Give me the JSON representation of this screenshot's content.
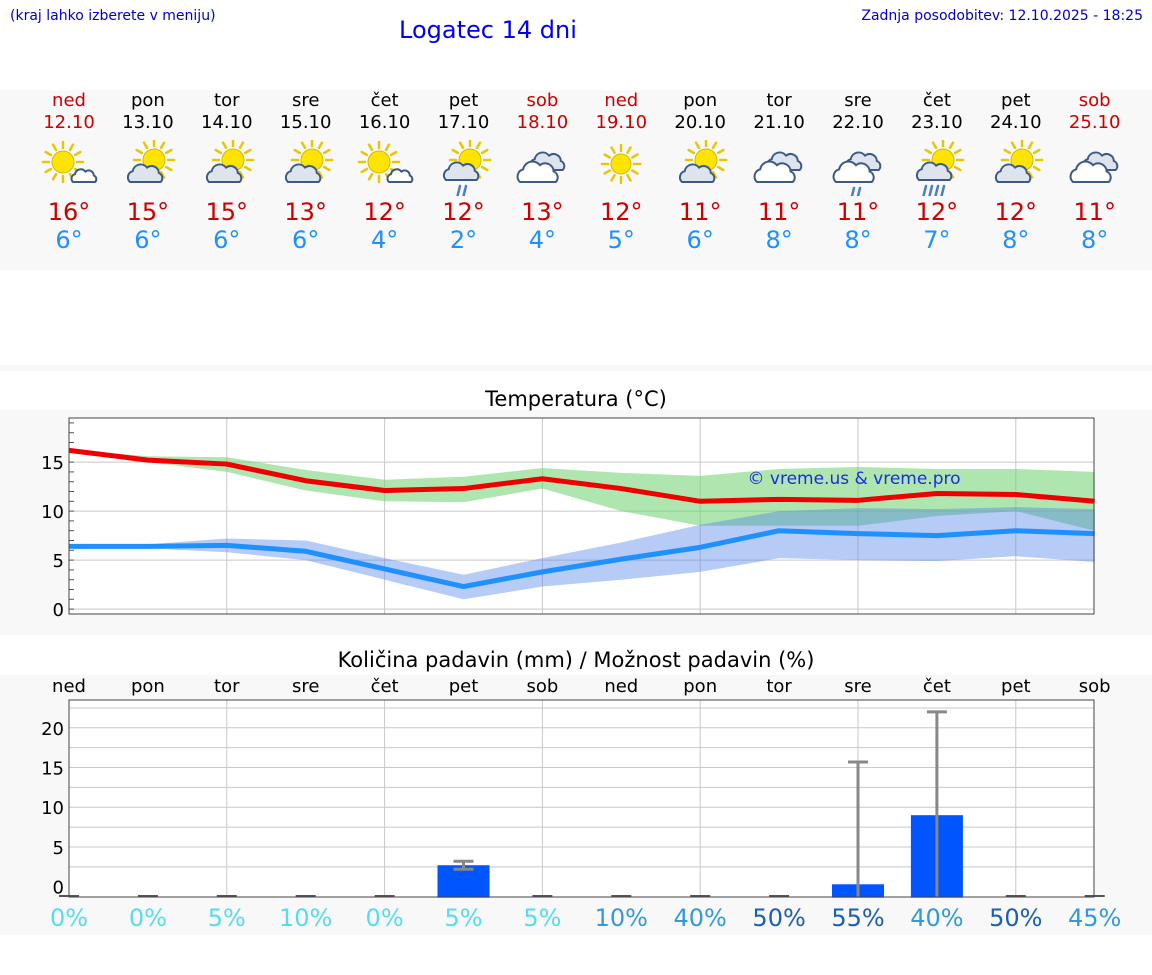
{
  "header": {
    "hint": "(kraj lahko izberete v meniju)",
    "title": "Logatec 14 dni",
    "updated": "Zadnja posodobitev: 12.10.2025 - 18:25"
  },
  "days": [
    {
      "name": "ned",
      "date": "12.10",
      "weekend": true,
      "icon": "sun-cloud-icon",
      "max": "16°",
      "min": "6°"
    },
    {
      "name": "pon",
      "date": "13.10",
      "weekend": false,
      "icon": "partly-cloudy-icon",
      "max": "15°",
      "min": "6°"
    },
    {
      "name": "tor",
      "date": "14.10",
      "weekend": false,
      "icon": "partly-cloudy-icon",
      "max": "15°",
      "min": "6°"
    },
    {
      "name": "sre",
      "date": "15.10",
      "weekend": false,
      "icon": "partly-cloudy-icon",
      "max": "13°",
      "min": "6°"
    },
    {
      "name": "čet",
      "date": "16.10",
      "weekend": false,
      "icon": "sun-cloud-icon",
      "max": "12°",
      "min": "4°"
    },
    {
      "name": "pet",
      "date": "17.10",
      "weekend": false,
      "icon": "partly-cloudy-light-rain-icon",
      "max": "12°",
      "min": "2°"
    },
    {
      "name": "sob",
      "date": "18.10",
      "weekend": true,
      "icon": "cloudy-icon",
      "max": "13°",
      "min": "4°"
    },
    {
      "name": "ned",
      "date": "19.10",
      "weekend": true,
      "icon": "sunny-icon",
      "max": "12°",
      "min": "5°"
    },
    {
      "name": "pon",
      "date": "20.10",
      "weekend": false,
      "icon": "partly-cloudy-icon",
      "max": "11°",
      "min": "6°"
    },
    {
      "name": "tor",
      "date": "21.10",
      "weekend": false,
      "icon": "cloudy-icon",
      "max": "11°",
      "min": "8°"
    },
    {
      "name": "sre",
      "date": "22.10",
      "weekend": false,
      "icon": "cloudy-light-rain-icon",
      "max": "11°",
      "min": "8°"
    },
    {
      "name": "čet",
      "date": "23.10",
      "weekend": false,
      "icon": "partly-cloudy-rain-icon",
      "max": "12°",
      "min": "7°"
    },
    {
      "name": "pet",
      "date": "24.10",
      "weekend": false,
      "icon": "partly-cloudy-icon",
      "max": "12°",
      "min": "8°"
    },
    {
      "name": "sob",
      "date": "25.10",
      "weekend": true,
      "icon": "cloudy-icon",
      "max": "11°",
      "min": "8°"
    }
  ],
  "chart_data": [
    {
      "type": "line",
      "title": "Temperatura (°C)",
      "ylim": [
        -0.5,
        19.5
      ],
      "yticks": [
        0,
        5,
        10,
        15
      ],
      "grid": true,
      "watermark": "© vreme.us & vreme.pro",
      "x": [
        0,
        1,
        2,
        3,
        4,
        5,
        6,
        7,
        8,
        9,
        10,
        11,
        12,
        13
      ],
      "series": [
        {
          "name": "max",
          "color": "#ee0000",
          "values": [
            16.2,
            15.2,
            14.8,
            13.1,
            12.1,
            12.3,
            13.3,
            12.3,
            11.0,
            11.2,
            11.1,
            11.8,
            11.7,
            11.0
          ]
        },
        {
          "name": "max_low",
          "values": [
            16.0,
            15.0,
            14.0,
            12.1,
            11.0,
            10.9,
            12.3,
            10.0,
            8.5,
            8.5,
            8.5,
            9.5,
            10.0,
            8.0
          ]
        },
        {
          "name": "max_high",
          "values": [
            16.3,
            15.6,
            15.5,
            14.2,
            13.2,
            13.5,
            14.4,
            13.9,
            13.6,
            14.3,
            14.5,
            14.3,
            14.3,
            14.0
          ]
        },
        {
          "name": "min",
          "color": "#1e90ff",
          "values": [
            6.4,
            6.4,
            6.5,
            5.9,
            4.1,
            2.3,
            3.8,
            5.1,
            6.3,
            8.0,
            7.7,
            7.5,
            8.0,
            7.7
          ]
        },
        {
          "name": "min_low",
          "values": [
            6.3,
            6.2,
            5.8,
            5.0,
            3.0,
            1.0,
            2.3,
            3.0,
            3.8,
            5.2,
            5.0,
            4.9,
            5.4,
            4.8
          ]
        },
        {
          "name": "min_high",
          "values": [
            6.5,
            6.6,
            7.2,
            7.0,
            5.2,
            3.5,
            5.2,
            6.8,
            8.6,
            10.0,
            10.3,
            10.2,
            10.4,
            10.2
          ]
        }
      ]
    },
    {
      "type": "bar",
      "title": "Količina padavin (mm) / Možnost padavin (%)",
      "ylim": [
        -1.3,
        23.5
      ],
      "yticks": [
        0,
        5,
        10,
        15,
        20
      ],
      "grid": true,
      "categories": [
        "ned",
        "pon",
        "tor",
        "sre",
        "čet",
        "pet",
        "sob",
        "ned",
        "pon",
        "tor",
        "sre",
        "čet",
        "pet",
        "sob"
      ],
      "values": [
        0,
        0,
        0,
        0,
        0,
        2.7,
        0,
        0,
        0,
        0,
        0.3,
        9.0,
        0,
        0
      ],
      "error_low": [
        0,
        0,
        0,
        0,
        0,
        2.2,
        0,
        0,
        0,
        0,
        0,
        0,
        0,
        0
      ],
      "error_high": [
        0,
        0,
        0,
        0,
        0,
        3.2,
        0,
        0,
        0,
        0,
        15.7,
        22.0,
        0,
        0
      ],
      "probabilities": [
        "0%",
        "0%",
        "5%",
        "10%",
        "0%",
        "5%",
        "5%",
        "10%",
        "40%",
        "50%",
        "55%",
        "40%",
        "50%",
        "45%"
      ],
      "probability_colors": [
        "#55ddee",
        "#55ddee",
        "#55ddee",
        "#55ddee",
        "#55ddee",
        "#55ddee",
        "#55ddee",
        "#3399dd",
        "#3399dd",
        "#1a5fb4",
        "#1a5fb4",
        "#3399dd",
        "#1a5fb4",
        "#3399dd"
      ],
      "bar_color": "#0055ff",
      "error_color": "#888888"
    }
  ]
}
